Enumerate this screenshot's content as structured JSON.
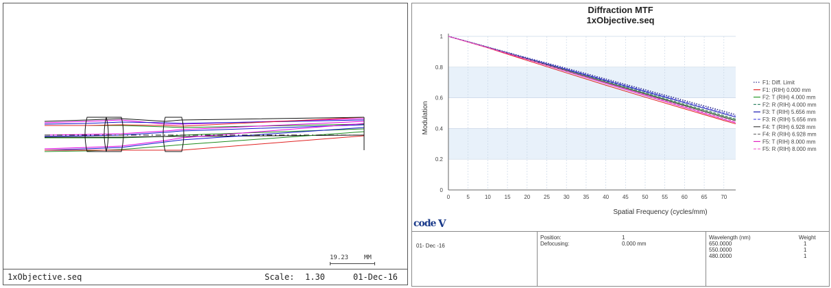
{
  "lens_view": {
    "filename": "1xObjective.seq",
    "scale_label": "Scale:",
    "scale_value": "1.30",
    "date": "01-Dec-16",
    "scalebar_value": "19.23",
    "scalebar_unit": "MM",
    "colors": {
      "red": "#e02020",
      "green": "#1a8a1a",
      "blue": "#1010cc",
      "magenta": "#e000e0",
      "black": "#111111"
    }
  },
  "mtf_panel": {
    "title": "Diffraction MTF",
    "subtitle": "1xObjective.seq",
    "logo_text": "code V",
    "table": {
      "date": "01- Dec -16",
      "position_label": "Position:",
      "position_value": "1",
      "defocusing_label": "Defocusing:",
      "defocusing_value": "0.000 mm",
      "wavelength_header": "Wavelength (nm)",
      "weight_header": "Weight",
      "rows": [
        {
          "wavelength": "650.0000",
          "weight": "1"
        },
        {
          "wavelength": "550.0000",
          "weight": "1"
        },
        {
          "wavelength": "480.0000",
          "weight": "1"
        }
      ]
    }
  },
  "chart_data": {
    "type": "line",
    "title": "Diffraction MTF",
    "subtitle": "1xObjective.seq",
    "xlabel": "Spatial Frequency (cycles/mm)",
    "ylabel": "Modulation",
    "xlim": [
      0,
      73
    ],
    "ylim": [
      0,
      1
    ],
    "x_ticks": [
      0,
      5,
      10,
      15,
      20,
      25,
      30,
      35,
      40,
      45,
      50,
      55,
      60,
      65,
      70
    ],
    "y_ticks": [
      0,
      0.2,
      0.4,
      0.6,
      0.8,
      1
    ],
    "grid": true,
    "legend_position": "right",
    "x": [
      0,
      10,
      20,
      30,
      40,
      50,
      60,
      70,
      73
    ],
    "series": [
      {
        "name": "F1: Diff. Limit",
        "color": "#2a2a8a",
        "dash": "dot",
        "values": [
          1,
          0.93,
          0.86,
          0.792,
          0.722,
          0.652,
          0.582,
          0.512,
          0.49
        ]
      },
      {
        "name": "F1: (RIH) 0.000 mm",
        "color": "#e02020",
        "dash": "solid",
        "values": [
          1,
          0.925,
          0.843,
          0.762,
          0.682,
          0.604,
          0.528,
          0.452,
          0.43
        ]
      },
      {
        "name": "F2: T (RIH) 4.000 mm",
        "color": "#2a9a2a",
        "dash": "solid",
        "values": [
          1,
          0.928,
          0.853,
          0.778,
          0.703,
          0.628,
          0.553,
          0.478,
          0.456
        ]
      },
      {
        "name": "F2: R (RIH) 4.000 mm",
        "color": "#3a8a6a",
        "dash": "dash",
        "values": [
          1,
          0.929,
          0.855,
          0.781,
          0.707,
          0.633,
          0.559,
          0.485,
          0.462
        ]
      },
      {
        "name": "F3: T (RIH) 5.656 mm",
        "color": "#1515b0",
        "dash": "solid",
        "values": [
          1,
          0.929,
          0.856,
          0.784,
          0.712,
          0.64,
          0.568,
          0.496,
          0.474
        ]
      },
      {
        "name": "F3: R (RIH) 5.656 mm",
        "color": "#5a5ae0",
        "dash": "dash",
        "values": [
          1,
          0.93,
          0.858,
          0.787,
          0.716,
          0.645,
          0.574,
          0.503,
          0.481
        ]
      },
      {
        "name": "F4: T (RIH) 6.928 mm",
        "color": "#444444",
        "dash": "solid",
        "values": [
          1,
          0.928,
          0.852,
          0.776,
          0.7,
          0.624,
          0.548,
          0.472,
          0.45
        ]
      },
      {
        "name": "F4: R (RIH) 6.928 mm",
        "color": "#777777",
        "dash": "dash",
        "values": [
          1,
          0.929,
          0.854,
          0.779,
          0.704,
          0.629,
          0.554,
          0.479,
          0.457
        ]
      },
      {
        "name": "F5: T (RIH) 8.000 mm",
        "color": "#e020c0",
        "dash": "solid",
        "values": [
          1,
          0.927,
          0.849,
          0.771,
          0.693,
          0.615,
          0.537,
          0.459,
          0.437
        ]
      },
      {
        "name": "F5: R (RIH) 8.000 mm",
        "color": "#f060d0",
        "dash": "dash",
        "values": [
          1,
          0.927,
          0.85,
          0.773,
          0.696,
          0.619,
          0.542,
          0.465,
          0.443
        ]
      }
    ]
  }
}
